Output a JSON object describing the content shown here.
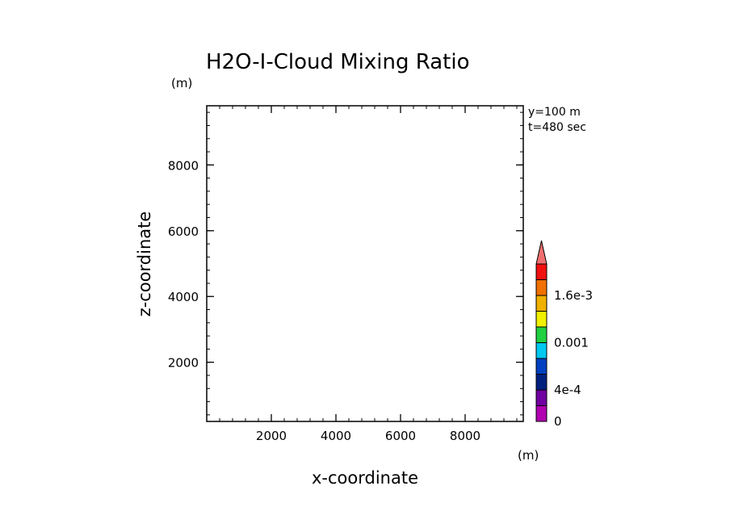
{
  "chart_data": {
    "type": "heatmap",
    "title": "H2O-I-Cloud Mixing Ratio",
    "xlabel": "x-coordinate",
    "ylabel": "z-coordinate",
    "x_unit": "(m)",
    "y_unit": "(m)",
    "xlim": [
      0,
      9800
    ],
    "ylim": [
      200,
      9800
    ],
    "x_ticks": [
      2000,
      4000,
      6000,
      8000
    ],
    "y_ticks": [
      2000,
      4000,
      6000,
      8000
    ],
    "annotations": [
      "y=100 m",
      "t=480 sec"
    ],
    "values": [],
    "colorbar": {
      "extend": "max",
      "range": [
        0,
        0.002
      ],
      "levels": [
        0,
        0.0002,
        0.0004,
        0.0006,
        0.0008,
        0.001,
        0.0012,
        0.0014,
        0.0016,
        0.0018,
        0.002
      ],
      "colors": [
        "#b000b0",
        "#7000a0",
        "#002080",
        "#0040c0",
        "#00c8f0",
        "#20d040",
        "#f0f000",
        "#f0b000",
        "#f07000",
        "#f01010"
      ],
      "extend_color": "#f07070",
      "tick_labels": [
        {
          "value": 0,
          "label": "0"
        },
        {
          "value": 0.0004,
          "label": "4e-4"
        },
        {
          "value": 0.001,
          "label": "0.001"
        },
        {
          "value": 0.0016,
          "label": "1.6e-3"
        }
      ]
    }
  }
}
